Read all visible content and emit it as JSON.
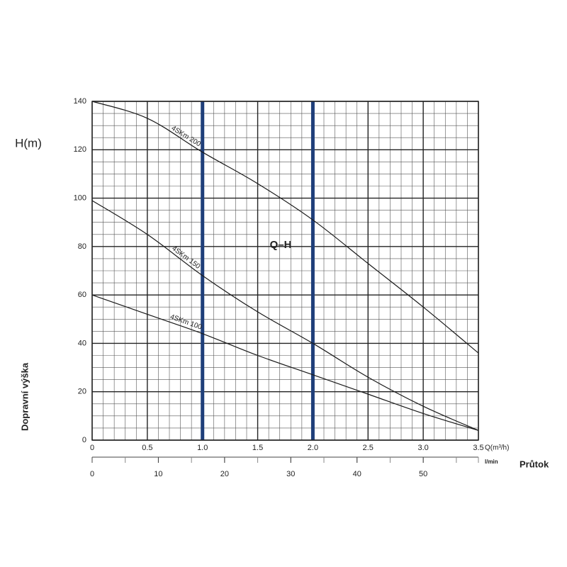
{
  "chart_data": {
    "type": "line",
    "y_label": "H(m)",
    "y_title": "Dopravní výška",
    "x_label": "Q(m³/h)",
    "x2_label": "l/min",
    "x_title": "Průtok",
    "annotation": "Q–H",
    "x": [
      0,
      0.5,
      1.0,
      1.5,
      2.0,
      2.5,
      3.0,
      3.5
    ],
    "series": [
      {
        "name": "4SKm 200",
        "color": "#1a1a1a",
        "values": [
          140,
          133,
          119,
          106,
          91,
          73,
          55,
          36
        ]
      },
      {
        "name": "4SKm 150",
        "color": "#1a1a1a",
        "values": [
          99,
          85,
          68,
          53,
          40,
          26,
          14,
          4
        ]
      },
      {
        "name": "4SKm 100",
        "color": "#1a1a1a",
        "values": [
          60,
          52,
          44,
          35,
          27,
          19,
          11,
          4
        ]
      }
    ],
    "xlim": [
      0,
      3.5
    ],
    "xticks": [
      0,
      0.5,
      {
        "value": 1,
        "label": "1.0"
      },
      1.5,
      {
        "value": 2,
        "label": "2.0"
      },
      2.5,
      {
        "value": 3,
        "label": "3.0"
      },
      3.5
    ],
    "x_minor_step": 0.1,
    "ylim": [
      0,
      140
    ],
    "yticks": [
      0,
      20,
      40,
      60,
      80,
      100,
      120,
      140
    ],
    "y_minor_step": 5,
    "x2lim": [
      0,
      58.33
    ],
    "x2ticks": [
      0,
      10,
      20,
      30,
      40,
      50
    ],
    "x2_minor_step": 5,
    "highlight_x": [
      1,
      2
    ],
    "highlight_color": "#1f3f7a",
    "grid": true
  }
}
